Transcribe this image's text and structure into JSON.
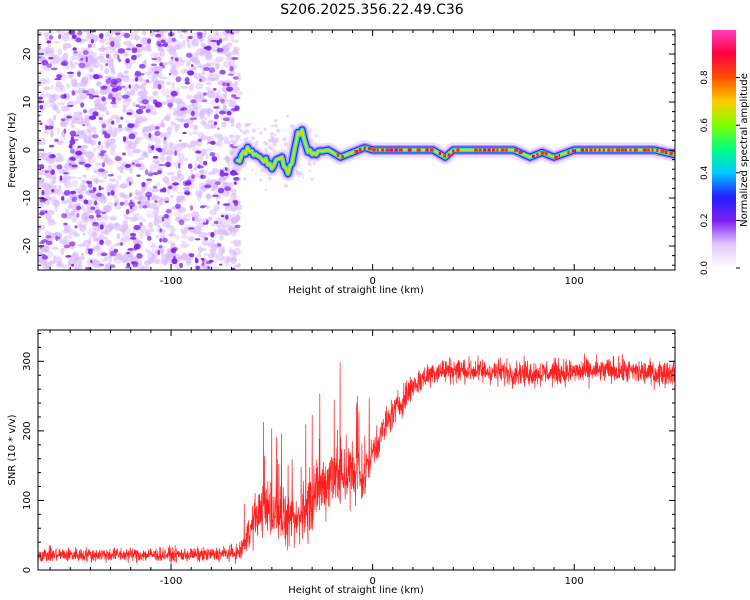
{
  "figure": {
    "title": "S206.2025.356.22.49.C36"
  },
  "colors": {
    "snr_line": "#ff2020",
    "speckle": "#7a1ff0",
    "axis": "#000000"
  },
  "chart_data": [
    {
      "type": "heatmap",
      "title": "",
      "xlabel": "Height of straight line (km)",
      "ylabel": "Frequency (Hz)",
      "xlim": [
        -166,
        150
      ],
      "ylim": [
        -25,
        25
      ],
      "x_ticks": [
        -100,
        0,
        100
      ],
      "y_ticks": [
        -20,
        -10,
        0,
        10,
        20
      ],
      "colorbar": {
        "label": "Normalized spectral amplitude",
        "range": [
          0,
          1
        ],
        "ticks": [
          "0.0",
          "0.2",
          "0.4",
          "0.6",
          "0.8"
        ],
        "tick_values": [
          0.0,
          0.2,
          0.4,
          0.6,
          0.8
        ],
        "colormap": [
          "#ffffff",
          "#e2c8ff",
          "#7a1ff0",
          "#2020ff",
          "#00c8ff",
          "#00ff80",
          "#80ff00",
          "#ffcc00",
          "#ff5000",
          "#ff0040",
          "#ff40c0"
        ]
      },
      "noise_region_x": [
        -166,
        -67
      ],
      "signal_track": {
        "x": [
          -67,
          -62,
          -58,
          -54,
          -50,
          -46,
          -42,
          -40,
          -38,
          -35,
          -32,
          -28,
          -22,
          -16,
          -10,
          -4,
          0,
          10,
          20,
          30,
          36,
          40,
          50,
          60,
          70,
          78,
          84,
          90,
          100,
          110,
          120,
          130,
          140,
          150
        ],
        "freq_hz": [
          -2.0,
          0.0,
          -1.0,
          -2.0,
          -3.5,
          -1.5,
          -5.0,
          -3.0,
          2.0,
          4.0,
          0.0,
          -0.5,
          0.0,
          -1.5,
          -0.5,
          0.5,
          0.0,
          0.0,
          0.0,
          0.0,
          -1.5,
          0.0,
          0.0,
          0.0,
          0.0,
          -1.5,
          -0.5,
          -1.5,
          0.0,
          0.0,
          0.0,
          0.0,
          0.0,
          -1.0
        ]
      }
    },
    {
      "type": "line",
      "title": "",
      "xlabel": "Height of straight line (km)",
      "ylabel": "SNR (10 * v/v)",
      "xlim": [
        -166,
        150
      ],
      "ylim": [
        0,
        345
      ],
      "x_ticks": [
        -100,
        0,
        100
      ],
      "y_ticks": [
        0,
        100,
        200,
        300
      ],
      "series": [
        {
          "name": "SNR",
          "envelope": {
            "x": [
              -166,
              -140,
              -110,
              -80,
              -66,
              -60,
              -55,
              -50,
              -45,
              -40,
              -35,
              -30,
              -25,
              -20,
              -15,
              -10,
              -5,
              0,
              5,
              10,
              15,
              20,
              25,
              30,
              40,
              60,
              80,
              100,
              120,
              140,
              150
            ],
            "mean": [
              22,
              22,
              22,
              22,
              25,
              60,
              90,
              85,
              80,
              60,
              80,
              100,
              120,
              140,
              140,
              135,
              130,
              170,
              200,
              225,
              245,
              265,
              275,
              285,
              288,
              285,
              283,
              285,
              287,
              283,
              285
            ],
            "spread": [
              14,
              14,
              14,
              14,
              16,
              35,
              50,
              55,
              55,
              45,
              55,
              65,
              60,
              70,
              75,
              70,
              55,
              40,
              35,
              30,
              30,
              28,
              26,
              25,
              25,
              25,
              25,
              25,
              25,
              25,
              25
            ]
          }
        }
      ]
    }
  ]
}
